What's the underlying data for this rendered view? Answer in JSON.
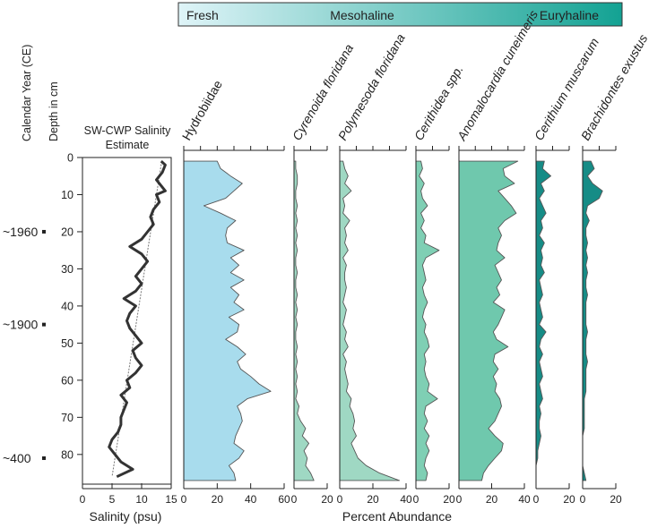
{
  "salinity_bar": {
    "labels": [
      "Fresh",
      "Mesohaline",
      "Euryhaline"
    ],
    "color_start": "#dff4f8",
    "color_end": "#13a293"
  },
  "chart_data": [
    {
      "type": "line",
      "title": "SW-CWP Salinity Estimate",
      "title_lines": [
        "SW-CWP Salinity",
        "Estimate"
      ],
      "xlabel": "Salinity (psu)",
      "xlim": [
        0,
        15
      ],
      "xticks": [
        0,
        5,
        10,
        15
      ],
      "ylim": [
        0,
        88
      ],
      "yticks": [
        0,
        10,
        20,
        30,
        40,
        50,
        60,
        70,
        80
      ],
      "ylabel_depth": "Depth in cm",
      "ylabel_year": "Calendar Year (CE)",
      "year_marks": [
        {
          "label": "~1960",
          "depth": 20
        },
        {
          "label": "~1900",
          "depth": 45
        },
        {
          "label": "~400",
          "depth": 81
        }
      ],
      "series": [
        {
          "name": "Salinity estimate",
          "color": "#333333",
          "depth": [
            1,
            2,
            4,
            6,
            8,
            9,
            10,
            12,
            14,
            16,
            18,
            20,
            22,
            24,
            26,
            28,
            30,
            32,
            34,
            36,
            38,
            40,
            42,
            44,
            46,
            48,
            50,
            52,
            54,
            56,
            58,
            60,
            62,
            64,
            66,
            68,
            70,
            72,
            74,
            76,
            78,
            80,
            82,
            84,
            86
          ],
          "salinity": [
            13.3,
            14,
            13.5,
            12.5,
            13.5,
            14,
            12.5,
            13,
            12,
            11.5,
            12,
            11,
            10,
            8,
            10,
            11,
            10,
            9,
            10,
            9,
            7,
            9,
            8,
            7.5,
            8,
            9,
            10,
            8.5,
            9,
            10,
            9,
            7.5,
            8,
            6.5,
            7.5,
            7,
            6.5,
            6.5,
            6,
            5,
            4.5,
            5.5,
            6.5,
            8.5,
            5.8
          ]
        },
        {
          "name": "Linear trend",
          "color": "#777777",
          "depth": [
            1,
            86
          ],
          "salinity": [
            13.4,
            5
          ]
        }
      ]
    },
    {
      "type": "area",
      "xlabel": "Percent Abundance",
      "ylim": [
        0,
        88
      ],
      "depth": [
        1,
        3,
        5,
        7,
        9,
        11,
        13,
        15,
        17,
        19,
        21,
        23,
        25,
        27,
        29,
        31,
        33,
        35,
        37,
        39,
        41,
        43,
        45,
        47,
        49,
        51,
        53,
        55,
        57,
        59,
        61,
        63,
        65,
        67,
        69,
        71,
        73,
        75,
        77,
        79,
        81,
        83,
        85,
        87
      ],
      "panels": [
        {
          "name": "Hydrobiidae",
          "xlim": [
            0,
            60
          ],
          "xticks": [
            0,
            20,
            40,
            60
          ],
          "color": "#a8dced",
          "values": [
            20,
            22,
            28,
            35,
            30,
            25,
            12,
            22,
            31,
            26,
            25,
            26,
            36,
            28,
            33,
            28,
            36,
            28,
            33,
            30,
            36,
            27,
            33,
            32,
            25,
            32,
            37,
            32,
            34,
            40,
            45,
            52,
            38,
            32,
            34,
            35,
            33,
            31,
            30,
            36,
            33,
            27,
            30,
            31
          ]
        },
        {
          "name": "Cyrenoida floridana",
          "xlim": [
            0,
            20
          ],
          "xticks": [
            0,
            20
          ],
          "color": "#9fd8c3",
          "values": [
            1,
            1,
            2,
            2,
            1,
            1,
            2,
            1,
            2,
            1,
            2,
            1,
            2,
            1,
            1,
            2,
            1,
            1,
            2,
            1,
            2,
            1,
            2,
            1,
            1,
            2,
            1,
            2,
            1,
            2,
            1,
            2,
            1,
            3,
            2,
            4,
            7,
            5,
            9,
            6,
            8,
            7,
            10,
            12
          ]
        },
        {
          "name": "Polymesoda floridana",
          "xlim": [
            0,
            40
          ],
          "xticks": [
            0,
            20,
            40
          ],
          "color": "#9fd8c3",
          "values": [
            2,
            3,
            5,
            3,
            7,
            2,
            3,
            2,
            6,
            3,
            4,
            3,
            5,
            2,
            4,
            3,
            3,
            4,
            3,
            2,
            4,
            3,
            2,
            4,
            3,
            5,
            2,
            4,
            3,
            4,
            5,
            4,
            7,
            6,
            8,
            9,
            8,
            10,
            7,
            9,
            11,
            16,
            24,
            36
          ]
        },
        {
          "name": "Cerithidea spp.",
          "xlim": [
            0,
            20
          ],
          "xticks": [
            0,
            20
          ],
          "color": "#7fcfb4",
          "values": [
            3,
            4,
            2,
            5,
            3,
            4,
            7,
            3,
            5,
            3,
            6,
            5,
            14,
            6,
            4,
            5,
            6,
            4,
            5,
            7,
            5,
            4,
            6,
            5,
            7,
            8,
            5,
            6,
            5,
            6,
            8,
            7,
            13,
            6,
            5,
            7,
            5,
            8,
            6,
            8,
            6,
            5,
            7,
            6
          ]
        },
        {
          "name": "Anomalocardia cuneimeris",
          "xlim": [
            0,
            40
          ],
          "xticks": [
            0,
            20,
            40
          ],
          "color": "#6fc8ad",
          "values": [
            36,
            27,
            28,
            34,
            24,
            28,
            32,
            35,
            28,
            24,
            26,
            24,
            23,
            28,
            22,
            24,
            26,
            23,
            25,
            21,
            28,
            26,
            24,
            21,
            23,
            30,
            22,
            21,
            24,
            21,
            23,
            22,
            25,
            26,
            24,
            22,
            18,
            22,
            27,
            26,
            22,
            18,
            15,
            14
          ]
        },
        {
          "name": "Cerithium muscarum",
          "xlim": [
            0,
            20
          ],
          "xticks": [
            0,
            20
          ],
          "color": "#168c86",
          "values": [
            5,
            4,
            9,
            3,
            5,
            2,
            4,
            6,
            3,
            4,
            2,
            5,
            3,
            4,
            3,
            5,
            2,
            3,
            4,
            2,
            3,
            4,
            2,
            6,
            3,
            2,
            4,
            2,
            3,
            4,
            2,
            3,
            4,
            2,
            3,
            2,
            2,
            3,
            2,
            1,
            1,
            0,
            0,
            0
          ]
        },
        {
          "name": "Brachidontes exustus",
          "xlim": [
            0,
            20
          ],
          "xticks": [
            0,
            20
          ],
          "color": "#168c86",
          "values": [
            5,
            7,
            3,
            6,
            12,
            10,
            3,
            2,
            4,
            2,
            2,
            3,
            2,
            3,
            2,
            3,
            2,
            2,
            3,
            2,
            2,
            2,
            2,
            3,
            2,
            2,
            2,
            3,
            2,
            2,
            2,
            2,
            1,
            1,
            1,
            1,
            1,
            0,
            0,
            0,
            0,
            0,
            1,
            2
          ]
        }
      ]
    }
  ]
}
